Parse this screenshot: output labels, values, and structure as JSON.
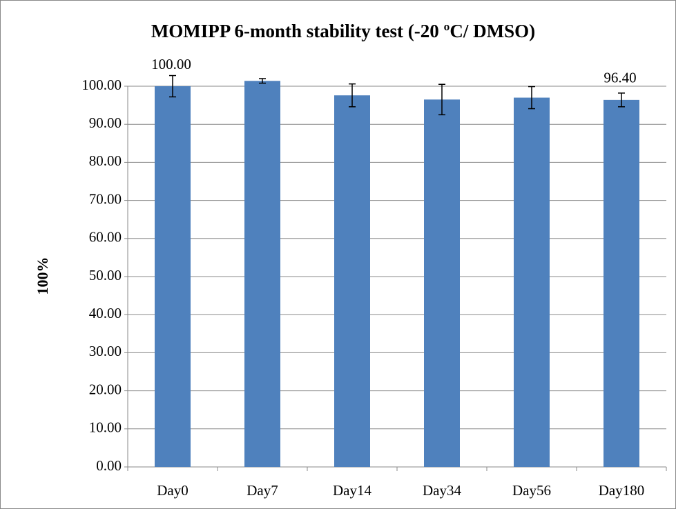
{
  "chart_data": {
    "type": "bar",
    "title": "MOMIPP 6-month stability test (-20 ºC/ DMSO)",
    "y_label": "100%",
    "categories": [
      "Day0",
      "Day7",
      "Day14",
      "Day34",
      "Day56",
      "Day180"
    ],
    "values": [
      100,
      101.4,
      97.6,
      96.5,
      97.0,
      96.4
    ],
    "errors": [
      2.8,
      0.6,
      3.0,
      4.0,
      2.9,
      1.8
    ],
    "value_labels": [
      "100.00",
      null,
      null,
      null,
      null,
      "96.40"
    ],
    "color": "#4f81bd",
    "ylim": [
      0,
      100
    ],
    "yticks": [
      {
        "value": 0,
        "label": "0.00"
      },
      {
        "value": 10,
        "label": "10.00"
      },
      {
        "value": 20,
        "label": "20.00"
      },
      {
        "value": 30,
        "label": "30.00"
      },
      {
        "value": 40,
        "label": "40.00"
      },
      {
        "value": 50,
        "label": "50.00"
      },
      {
        "value": 60,
        "label": "60.00"
      },
      {
        "value": 70,
        "label": "70.00"
      },
      {
        "value": 80,
        "label": "80.00"
      },
      {
        "value": 90,
        "label": "90.00"
      },
      {
        "value": 100,
        "label": "100.00"
      }
    ],
    "grid": true
  }
}
